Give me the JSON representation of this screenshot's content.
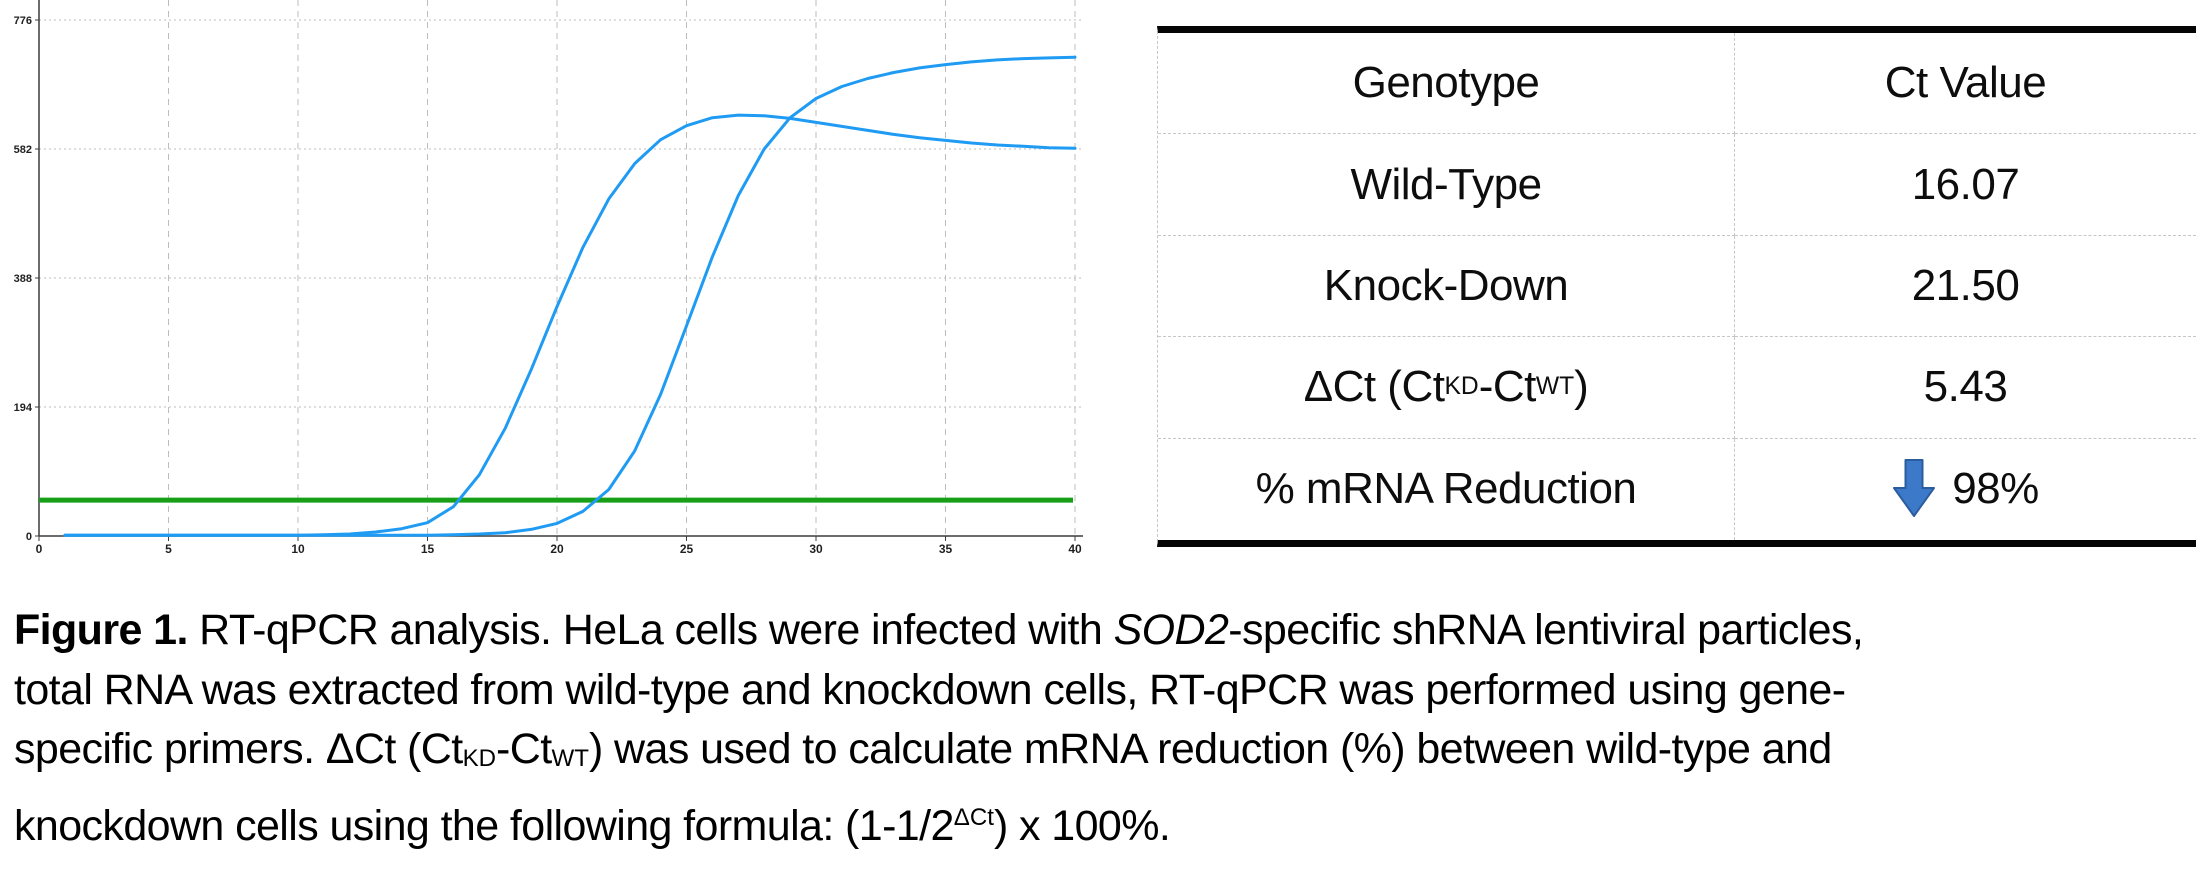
{
  "table": {
    "headers": [
      "Genotype",
      "Ct Value"
    ],
    "rows": [
      {
        "label": [
          {
            "t": "Wild-Type"
          }
        ],
        "value": "16.07"
      },
      {
        "label": [
          {
            "t": "Knock-Down"
          }
        ],
        "value": "21.50"
      },
      {
        "label": [
          {
            "t": "ΔCt (Ct"
          },
          {
            "t": "KD",
            "sub": true
          },
          {
            "t": "-Ct"
          },
          {
            "t": "WT",
            "sub": true
          },
          {
            "t": ")"
          }
        ],
        "value": "5.43"
      },
      {
        "label": [
          {
            "t": "% mRNA Reduction"
          }
        ],
        "value": "98%"
      }
    ],
    "arrow_fill": "#3D79C9",
    "arrow_stroke": "#2B5C9E"
  },
  "caption": {
    "lines": [
      [
        {
          "t": "Figure 1.",
          "b": true
        },
        {
          "t": " RT-qPCR analysis. HeLa cells were infected with "
        },
        {
          "t": "SOD2",
          "i": true
        },
        {
          "t": "-specific shRNA lentiviral particles,"
        }
      ],
      [
        {
          "t": "total RNA was extracted from wild-type and knockdown cells, RT-qPCR was performed using gene-"
        }
      ],
      [
        {
          "t": "specific primers. ΔCt (Ct"
        },
        {
          "t": "KD",
          "sub": true
        },
        {
          "t": "-Ct"
        },
        {
          "t": "WT",
          "sub": true
        },
        {
          "t": ") was used to calculate mRNA reduction (%) between wild-type and"
        }
      ],
      [
        {
          "t": "knockdown cells using the following formula: (1-1/2"
        },
        {
          "t": "ΔCt",
          "sup": true
        },
        {
          "t": ") x 100%."
        }
      ]
    ]
  },
  "chart_data": {
    "type": "line",
    "title": "",
    "xlabel": "",
    "ylabel": "",
    "xlim": [
      0,
      40
    ],
    "ylim": [
      0,
      776
    ],
    "x_ticks": [
      0,
      5,
      10,
      15,
      20,
      25,
      30,
      35,
      40
    ],
    "y_ticks": [
      0,
      194,
      388,
      582,
      776
    ],
    "grid": true,
    "legend_position": "none",
    "colors": {
      "curve": "#1F9BF3",
      "threshold": "#17A017",
      "grid": "#bdbdbd",
      "axis": "#3c3c3c"
    },
    "threshold": {
      "value": 54
    },
    "series": [
      {
        "name": "Wild-Type",
        "ct": 16.07,
        "points": [
          [
            1,
            1
          ],
          [
            2,
            1
          ],
          [
            3,
            1
          ],
          [
            4,
            1
          ],
          [
            5,
            1
          ],
          [
            6,
            1
          ],
          [
            7,
            1
          ],
          [
            8,
            1
          ],
          [
            9,
            1
          ],
          [
            10,
            1
          ],
          [
            11,
            2
          ],
          [
            12,
            3
          ],
          [
            13,
            6
          ],
          [
            14,
            11
          ],
          [
            15,
            20
          ],
          [
            16,
            44
          ],
          [
            17,
            92
          ],
          [
            18,
            162
          ],
          [
            19,
            250
          ],
          [
            20,
            345
          ],
          [
            21,
            434
          ],
          [
            22,
            507
          ],
          [
            23,
            560
          ],
          [
            24,
            596
          ],
          [
            25,
            617
          ],
          [
            26,
            629
          ],
          [
            27,
            633
          ],
          [
            28,
            632
          ],
          [
            29,
            628
          ],
          [
            30,
            622
          ],
          [
            31,
            616
          ],
          [
            32,
            610
          ],
          [
            33,
            604
          ],
          [
            34,
            599
          ],
          [
            35,
            595
          ],
          [
            36,
            591
          ],
          [
            37,
            588
          ],
          [
            38,
            586
          ],
          [
            39,
            584
          ],
          [
            40,
            583
          ]
        ]
      },
      {
        "name": "Knock-Down",
        "ct": 21.5,
        "points": [
          [
            1,
            1
          ],
          [
            2,
            1
          ],
          [
            3,
            1
          ],
          [
            4,
            1
          ],
          [
            5,
            1
          ],
          [
            6,
            1
          ],
          [
            7,
            1
          ],
          [
            8,
            1
          ],
          [
            9,
            1
          ],
          [
            10,
            1
          ],
          [
            11,
            1
          ],
          [
            12,
            1
          ],
          [
            13,
            1
          ],
          [
            14,
            1
          ],
          [
            15,
            1
          ],
          [
            16,
            2
          ],
          [
            17,
            3
          ],
          [
            18,
            5
          ],
          [
            19,
            10
          ],
          [
            20,
            19
          ],
          [
            21,
            37
          ],
          [
            22,
            70
          ],
          [
            23,
            128
          ],
          [
            24,
            213
          ],
          [
            25,
            316
          ],
          [
            26,
            420
          ],
          [
            27,
            512
          ],
          [
            28,
            582
          ],
          [
            29,
            629
          ],
          [
            30,
            658
          ],
          [
            31,
            676
          ],
          [
            32,
            688
          ],
          [
            33,
            697
          ],
          [
            34,
            704
          ],
          [
            35,
            709
          ],
          [
            36,
            713
          ],
          [
            37,
            716
          ],
          [
            38,
            718
          ],
          [
            39,
            719
          ],
          [
            40,
            720
          ]
        ]
      }
    ]
  }
}
